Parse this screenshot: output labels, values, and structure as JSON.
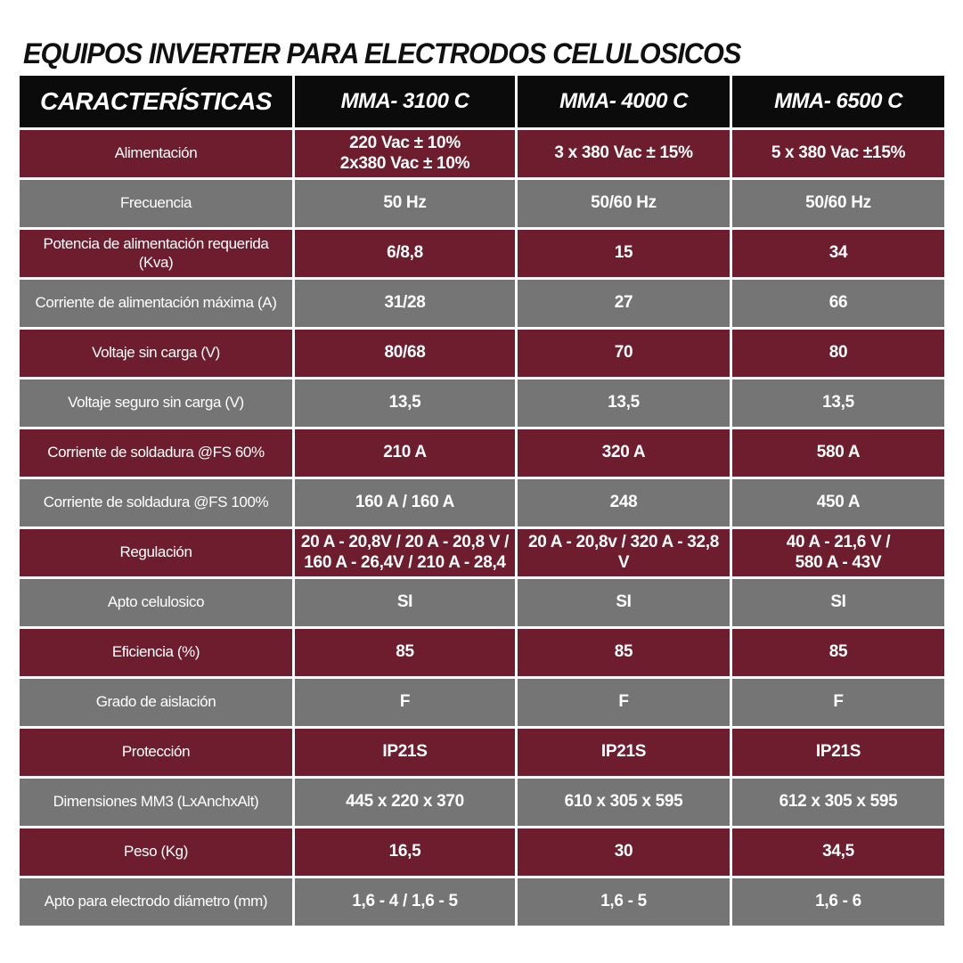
{
  "page": {
    "title": "EQUIPOS INVERTER PARA ELECTRODOS CELULOSICOS"
  },
  "colors": {
    "header_bg": "#0b0b0b",
    "row_red": "#6d1d2d",
    "row_gray": "#757575",
    "cell_text": "#ffffff",
    "title_text": "#101010",
    "grid_gap": "#ffffff"
  },
  "table": {
    "columns": [
      "CARACTERÍSTICAS",
      "MMA- 3100 C",
      "MMA- 4000 C",
      "MMA- 6500 C"
    ],
    "rows": [
      {
        "label": "Alimentación",
        "values": [
          "220 Vac ± 10%\n2x380 Vac ± 10%",
          "3 x 380 Vac ± 15%",
          "5 x 380 Vac ±15%"
        ]
      },
      {
        "label": "Frecuencia",
        "values": [
          "50 Hz",
          "50/60 Hz",
          "50/60 Hz"
        ]
      },
      {
        "label": "Potencia de alimentación requerida (Kva)",
        "values": [
          "6/8,8",
          "15",
          "34"
        ]
      },
      {
        "label": "Corriente de alimentación máxima (A)",
        "values": [
          "31/28",
          "27",
          "66"
        ]
      },
      {
        "label": "Voltaje sin carga (V)",
        "values": [
          "80/68",
          "70",
          "80"
        ]
      },
      {
        "label": "Voltaje seguro sin carga (V)",
        "values": [
          "13,5",
          "13,5",
          "13,5"
        ]
      },
      {
        "label": "Corriente de soldadura @FS 60%",
        "values": [
          "210 A",
          "320 A",
          "580 A"
        ]
      },
      {
        "label": "Corriente de soldadura @FS 100%",
        "values": [
          "160 A / 160 A",
          "248",
          "450 A"
        ]
      },
      {
        "label": "Regulación",
        "values": [
          "20 A - 20,8V / 20 A - 20,8 V /\n160 A - 26,4V / 210 A - 28,4",
          "20 A - 20,8v / 320 A - 32,8 V",
          "40 A - 21,6 V /\n580 A - 43V"
        ]
      },
      {
        "label": "Apto celulosico",
        "values": [
          "SI",
          "SI",
          "SI"
        ]
      },
      {
        "label": "Eficiencia (%)",
        "values": [
          "85",
          "85",
          "85"
        ]
      },
      {
        "label": "Grado de aislación",
        "values": [
          "F",
          "F",
          "F"
        ]
      },
      {
        "label": "Protección",
        "values": [
          "IP21S",
          "IP21S",
          "IP21S"
        ]
      },
      {
        "label": "Dimensiones MM3 (LxAnchxAlt)",
        "values": [
          "445 x 220 x 370",
          "610 x 305 x 595",
          "612 x 305 x 595"
        ]
      },
      {
        "label": "Peso (Kg)",
        "values": [
          "16,5",
          "30",
          "34,5"
        ]
      },
      {
        "label": "Apto para electrodo diámetro (mm)",
        "values": [
          "1,6 -  4 / 1,6 - 5",
          "1,6 - 5",
          "1,6 - 6"
        ]
      }
    ]
  }
}
